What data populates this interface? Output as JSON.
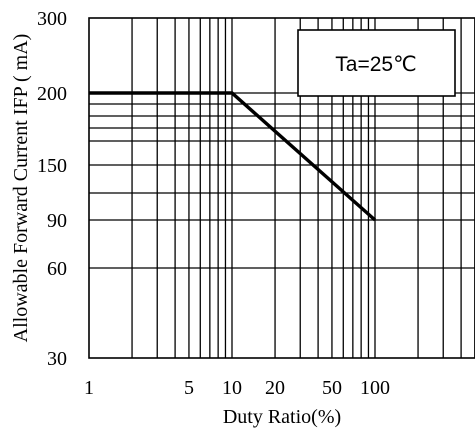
{
  "chart_data": {
    "type": "line",
    "xlabel": "Duty Ratio(%)",
    "ylabel": "Allowable Forward Current IFP ( mA)",
    "x_scale": "log",
    "x_tick_labels": [
      "1",
      "5",
      "10",
      "20",
      "50",
      "100"
    ],
    "y_tick_labels": [
      "300",
      "200",
      "150",
      "90",
      "60",
      "30"
    ],
    "grid": true,
    "annotation": "Ta=25℃",
    "series": [
      {
        "x": [
          1,
          10,
          100
        ],
        "y": [
          200,
          200,
          90
        ]
      }
    ]
  }
}
